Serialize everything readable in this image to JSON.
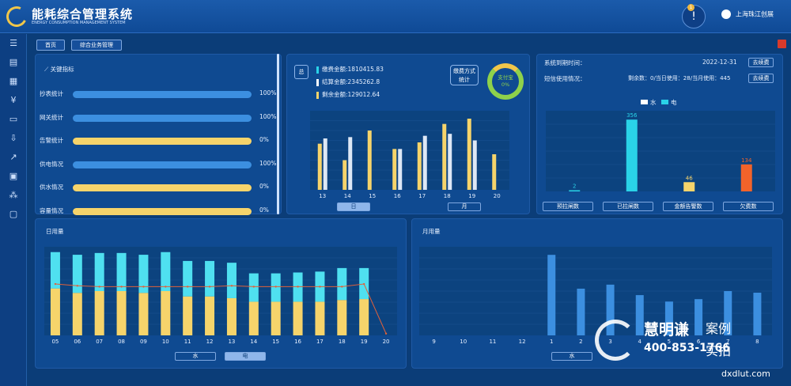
{
  "app": {
    "title": "能耗综合管理系统",
    "subtitle": "ENERGY CONSUMPTION MANAGEMENT SYSTEM",
    "user": "上海珠江创展",
    "notify_count": "1"
  },
  "sidebar": {
    "items": [
      "list-icon",
      "report-icon",
      "building-icon",
      "yuan-icon",
      "monitor-icon",
      "download-icon",
      "chart-icon",
      "doc-icon",
      "apps-icon",
      "image-icon"
    ]
  },
  "nav": {
    "home": "首页",
    "business": "综合业务管理"
  },
  "kpi": {
    "title": "关键指标",
    "rows": [
      {
        "label": "抄表统计",
        "value": "100%",
        "pct": 1.0,
        "color": "#3c8fe0"
      },
      {
        "label": "网关统计",
        "value": "100%",
        "pct": 1.0,
        "color": "#3c8fe0"
      },
      {
        "label": "告警统计",
        "value": "0%",
        "pct": 0.0,
        "color": "#f6d46b"
      },
      {
        "label": "供电情况",
        "value": "100%",
        "pct": 1.0,
        "color": "#3c8fe0"
      },
      {
        "label": "供水情况",
        "value": "0%",
        "pct": 0.0,
        "color": "#f6d46b"
      },
      {
        "label": "容量情况",
        "value": "0%",
        "pct": 0.0,
        "color": "#f6d46b"
      }
    ]
  },
  "payment": {
    "total_label": "总",
    "fee": "缴费金额:1810415.83",
    "settle": "结算金额:2345262.8",
    "remain": "剩余金额:129012.64",
    "pay_method": "缴费方式统计",
    "ring_label": "支付宝",
    "ring_value": "0%",
    "tab_day": "日",
    "tab_month": "月"
  },
  "system": {
    "expire_label": "系统到期时间：",
    "expire_date": "2022-12-31",
    "renew": "去续费",
    "sms_label": "短信使用情况：",
    "sms_info": "剩余数：0/当日使用：28/当月使用：445",
    "renew2": "去续费",
    "legend_water": "水",
    "legend_elec": "电",
    "buttons": [
      "预拉闸数",
      "已拉闸数",
      "金额告警数",
      "欠费数"
    ]
  },
  "daily": {
    "title": "日用量",
    "tab_water": "水",
    "tab_elec": "电"
  },
  "monthly": {
    "title": "月用量",
    "tab_water": "水"
  },
  "chart_data": [
    {
      "type": "bar",
      "title": "",
      "categories": [
        "13",
        "14",
        "15",
        "16",
        "17",
        "18",
        "19",
        "20"
      ],
      "series": [
        {
          "values": [
            70,
            45,
            90,
            62,
            72,
            100,
            108,
            54
          ],
          "color": "#f6d46b"
        },
        {
          "values": [
            78,
            80,
            0,
            62,
            82,
            85,
            75,
            0
          ],
          "color": "#dde8f6"
        }
      ],
      "ylim": [
        0,
        120
      ]
    },
    {
      "type": "bar",
      "title": "",
      "categories": [
        "预拉闸数",
        "已拉闸数",
        "金额告警数",
        "欠费数"
      ],
      "series": [
        {
          "values": [
            2,
            356,
            46,
            134
          ],
          "colors": [
            "#2ad3e8",
            "#2ad3e8",
            "#f6d46b",
            "#f2632a"
          ]
        }
      ],
      "labels": [
        "2",
        "356",
        "46",
        "134"
      ],
      "ylim": [
        0,
        400
      ]
    },
    {
      "type": "bar",
      "title": "日用量",
      "categories": [
        "05",
        "06",
        "07",
        "08",
        "09",
        "10",
        "11",
        "12",
        "13",
        "14",
        "15",
        "16",
        "17",
        "18",
        "19",
        "20"
      ],
      "series": [
        {
          "name": "水",
          "values": [
            53,
            48,
            50,
            50,
            48,
            50,
            44,
            44,
            42,
            38,
            38,
            38,
            38,
            40,
            41,
            0
          ],
          "color": "#f6d46b"
        },
        {
          "name": "电",
          "values": [
            41,
            43,
            43,
            43,
            43,
            44,
            40,
            40,
            40,
            32,
            32,
            33,
            34,
            36,
            35,
            0
          ],
          "color": "#4fe0f0"
        }
      ],
      "line": [
        58,
        56,
        55,
        55,
        55,
        55,
        55,
        55,
        56,
        55,
        55,
        55,
        55,
        55,
        58,
        2
      ],
      "ylim": [
        0,
        100
      ]
    },
    {
      "type": "bar",
      "title": "月用量",
      "categories": [
        "9",
        "10",
        "11",
        "12",
        "1",
        "2",
        "3",
        "4",
        "5",
        "6",
        "7",
        "8"
      ],
      "series": [
        {
          "values": [
            0,
            0,
            0,
            0,
            100,
            58,
            63,
            50,
            42,
            45,
            55,
            53
          ],
          "color": "#3c8fe0"
        }
      ],
      "ylim": [
        0,
        110
      ]
    }
  ],
  "watermark": {
    "brand": "慧明谦",
    "tag1": "案例",
    "tag2": "实拍",
    "phone": "400-853-1766",
    "site": "dxdlut.com"
  }
}
